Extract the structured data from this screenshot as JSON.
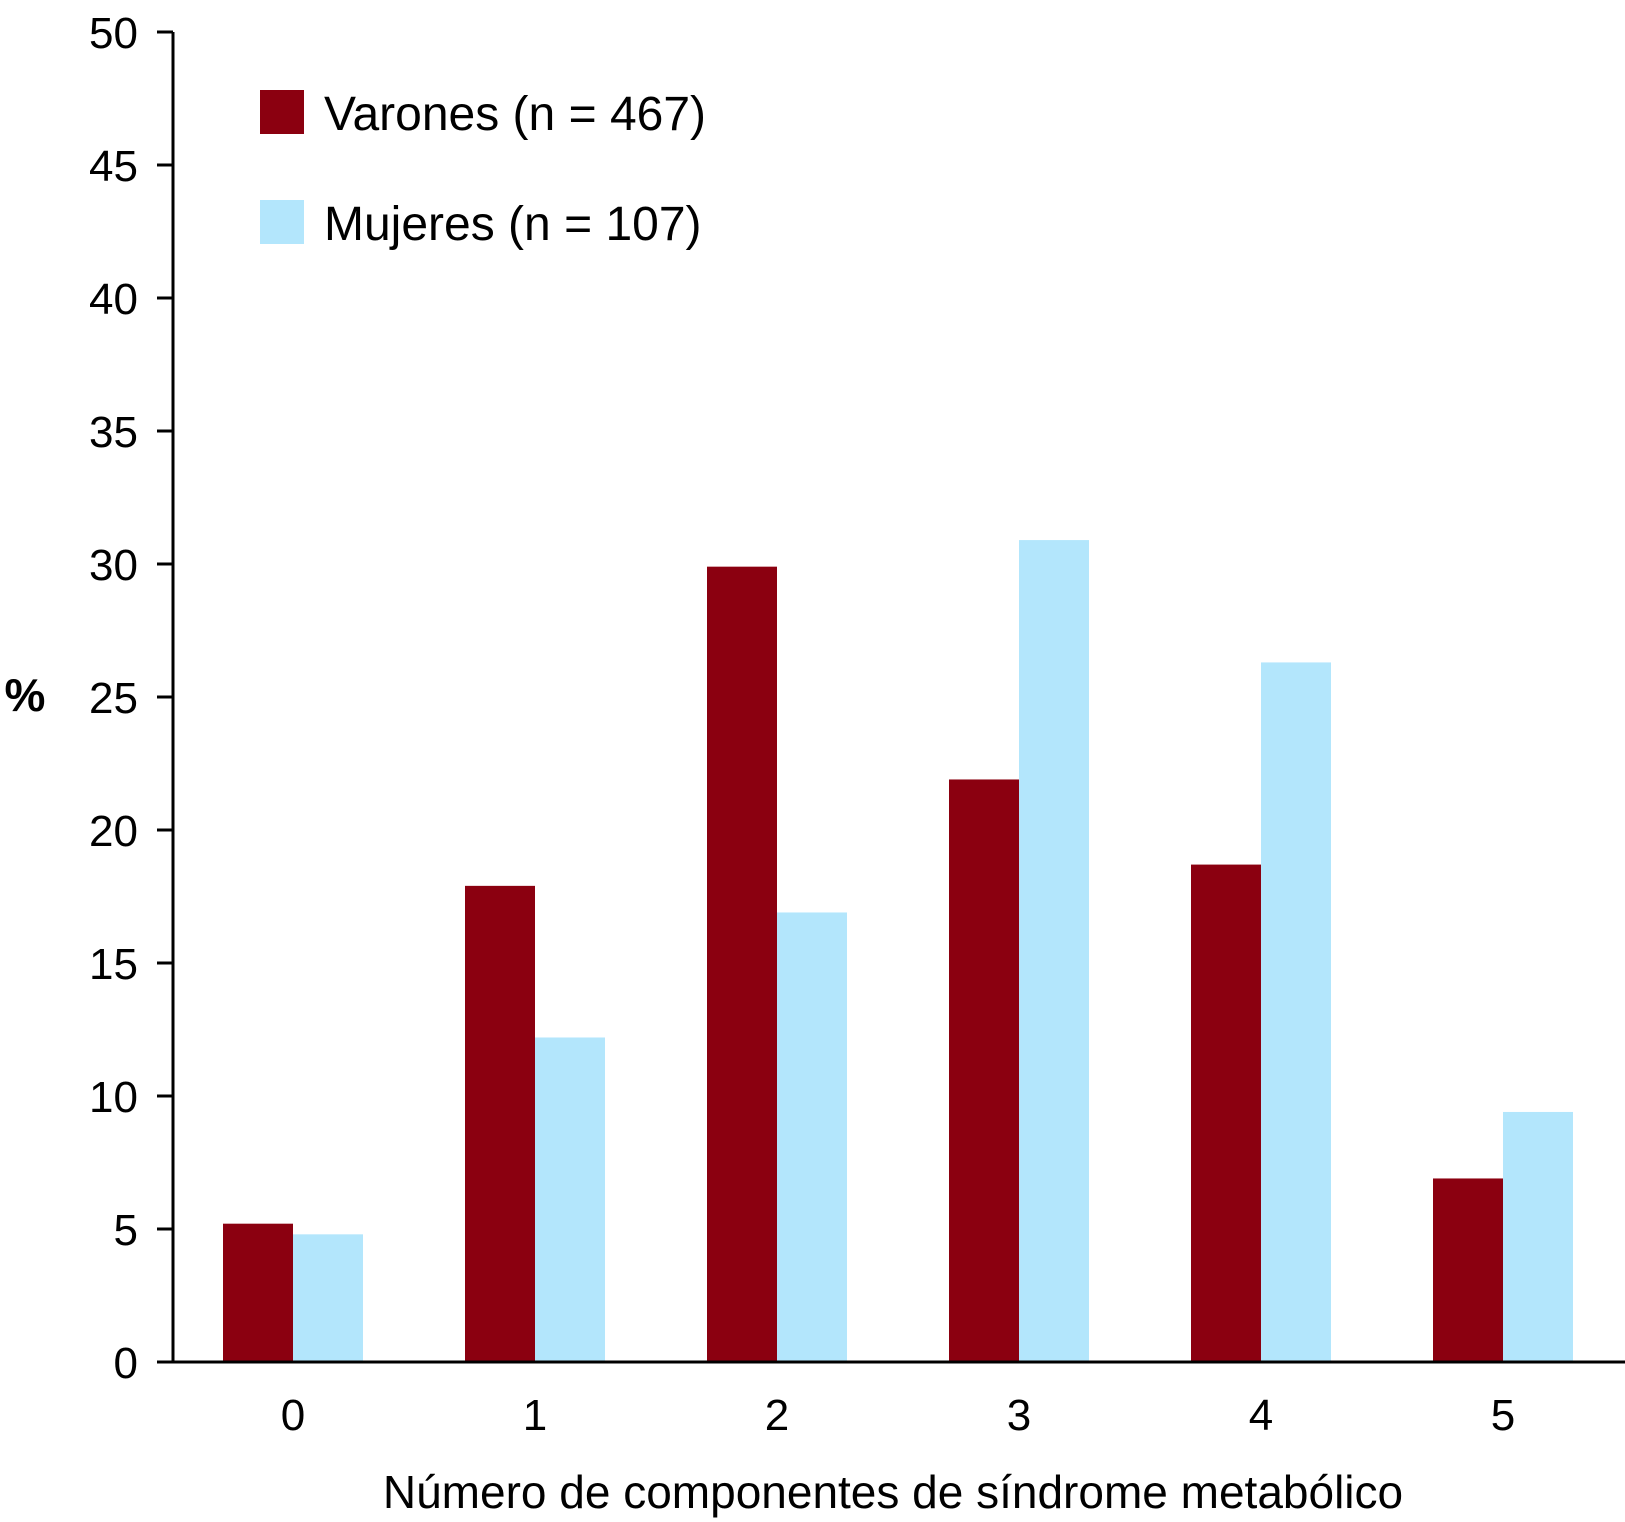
{
  "chart_data": {
    "type": "bar",
    "categories": [
      "0",
      "1",
      "2",
      "3",
      "4",
      "5"
    ],
    "series": [
      {
        "name": "Varones (n = 467)",
        "color": "#8b0010",
        "values": [
          5.2,
          17.9,
          29.9,
          21.9,
          18.7,
          6.9
        ]
      },
      {
        "name": "Mujeres (n = 107)",
        "color": "#b3e6fc",
        "values": [
          4.8,
          12.2,
          16.9,
          30.9,
          26.3,
          9.4
        ]
      }
    ],
    "title": "",
    "xlabel": "Número de componentes de síndrome metabólico",
    "ylabel": "%",
    "ylim": [
      0,
      50
    ],
    "yticks": [
      0,
      5,
      10,
      15,
      20,
      25,
      30,
      35,
      40,
      45,
      50
    ],
    "grid": false,
    "legend_position": "top-left"
  }
}
